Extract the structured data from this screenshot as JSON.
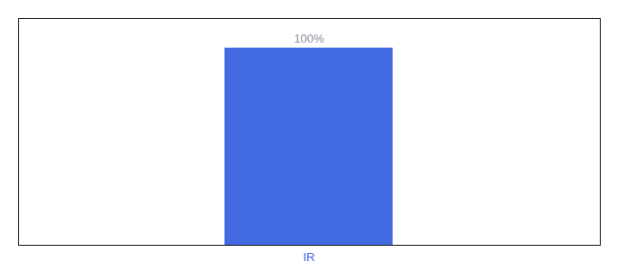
{
  "chart_data": {
    "type": "bar",
    "categories": [
      "IR"
    ],
    "values": [
      100
    ],
    "value_labels": [
      "100%"
    ],
    "data_labels": true,
    "color": "#4169e1",
    "ylim": [
      0,
      115
    ],
    "grid": false,
    "tick_labels": "x"
  }
}
